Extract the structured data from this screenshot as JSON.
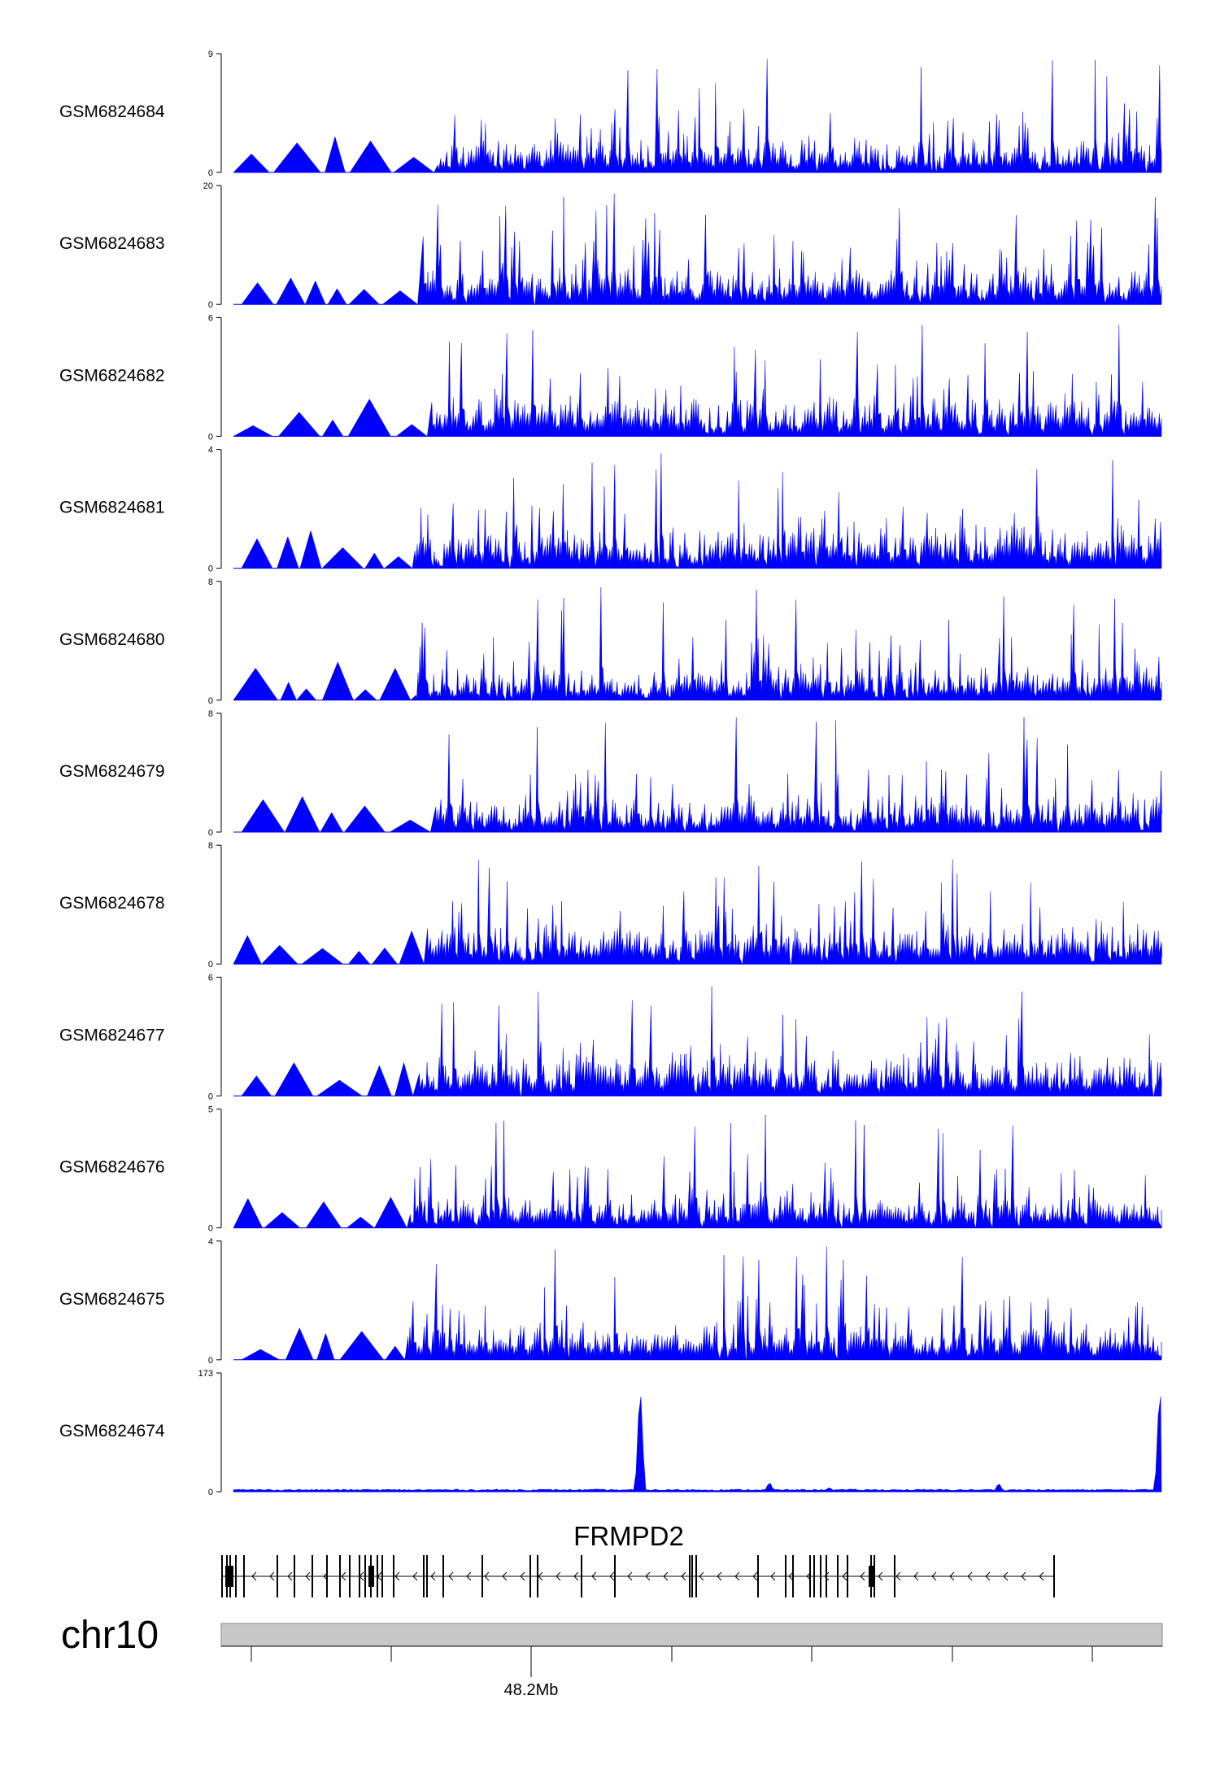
{
  "chart_data": {
    "type": "area",
    "title": "",
    "color": "#0000ff",
    "series": [
      {
        "name": "GSM6824684",
        "ymax": 9,
        "ytick_labels": [
          "9",
          "0"
        ]
      },
      {
        "name": "GSM6824683",
        "ymax": 20,
        "ytick_labels": [
          "20",
          "0"
        ]
      },
      {
        "name": "GSM6824682",
        "ymax": 6,
        "ytick_labels": [
          "6",
          "0"
        ]
      },
      {
        "name": "GSM6824681",
        "ymax": 4,
        "ytick_labels": [
          "4",
          "0"
        ]
      },
      {
        "name": "GSM6824680",
        "ymax": 8,
        "ytick_labels": [
          "8",
          "0"
        ]
      },
      {
        "name": "GSM6824679",
        "ymax": 8,
        "ytick_labels": [
          "8",
          "0"
        ]
      },
      {
        "name": "GSM6824678",
        "ymax": 8,
        "ytick_labels": [
          "8",
          "0"
        ]
      },
      {
        "name": "GSM6824677",
        "ymax": 6,
        "ytick_labels": [
          "6",
          "0"
        ]
      },
      {
        "name": "GSM6824676",
        "ymax": 5,
        "ytick_labels": [
          "5",
          "0"
        ]
      },
      {
        "name": "GSM6824675",
        "ymax": 4,
        "ytick_labels": [
          "4",
          "0"
        ]
      },
      {
        "name": "GSM6824674",
        "ymax": 173,
        "ytick_labels": [
          "173",
          "0"
        ]
      }
    ],
    "gene": {
      "name": "FRMPD2",
      "strand": "-"
    },
    "chromosome": {
      "name": "chr10",
      "coordinate_label": "48.2Mb"
    }
  }
}
